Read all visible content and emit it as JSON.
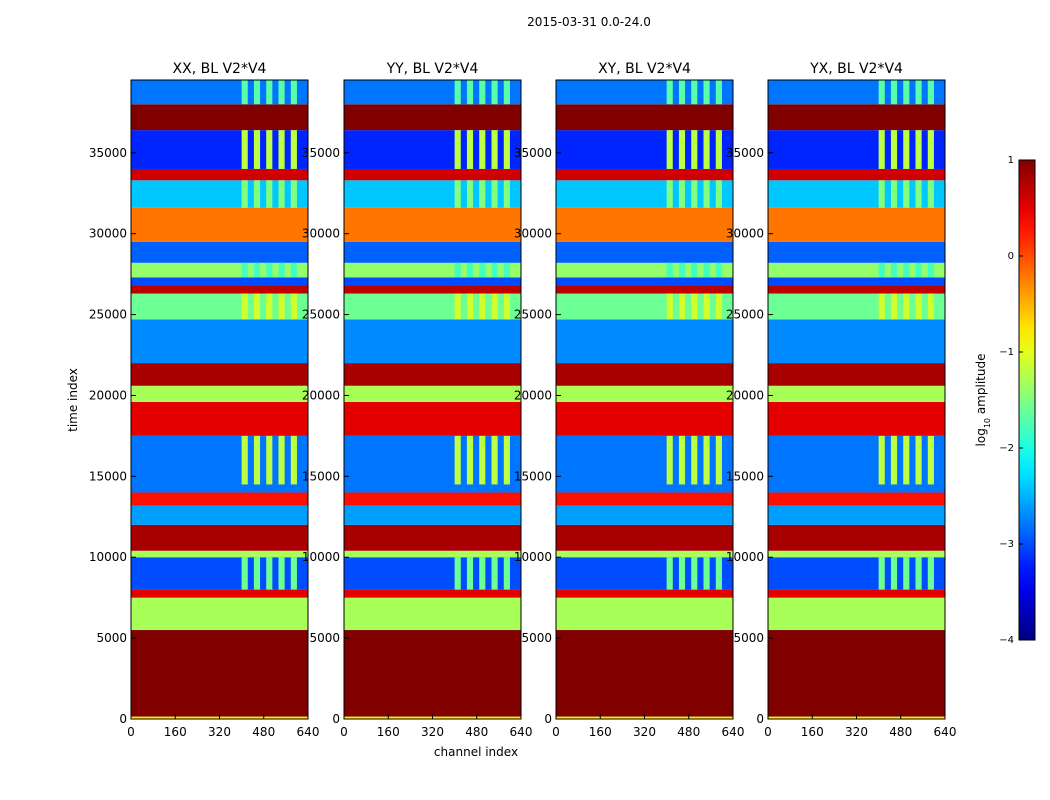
{
  "chart_data": {
    "type": "heatmap",
    "title": "2015-03-31 0.0-24.0",
    "xlabel": "channel index",
    "ylabel": "time index",
    "xlim": [
      0,
      640
    ],
    "ylim": [
      0,
      39500
    ],
    "xticks": [
      0,
      160,
      320,
      480,
      640
    ],
    "yticks": [
      0,
      5000,
      10000,
      15000,
      20000,
      25000,
      30000,
      35000
    ],
    "colorbar": {
      "label_main": "log",
      "label_sub": "10",
      "label_tail": " amplitude",
      "range": [
        -4,
        1
      ],
      "ticks": [
        1,
        0,
        -1,
        -2,
        -3,
        -4
      ],
      "tick_labels": [
        "1",
        "0",
        "−1",
        "−2",
        "−3",
        "−4"
      ],
      "colormap": "jet"
    },
    "panels": [
      {
        "title": "XX, BL V2*V4",
        "key": "xx"
      },
      {
        "title": "YY, BL V2*V4",
        "key": "yy"
      },
      {
        "title": "XY, BL V2*V4",
        "key": "xy"
      },
      {
        "title": "YX, BL V2*V4",
        "key": "yx"
      }
    ],
    "time_bands": [
      {
        "t0": 0,
        "t1": 150,
        "v": -0.8
      },
      {
        "t0": 150,
        "t1": 5500,
        "v": 1.0
      },
      {
        "t0": 5500,
        "t1": 7500,
        "v": -1.3
      },
      {
        "t0": 7500,
        "t1": 8000,
        "v": 0.5
      },
      {
        "t0": 8000,
        "t1": 10000,
        "v": -3.0
      },
      {
        "t0": 10000,
        "t1": 10400,
        "v": -1.3
      },
      {
        "t0": 10400,
        "t1": 12000,
        "v": 0.8
      },
      {
        "t0": 12000,
        "t1": 13200,
        "v": -2.6
      },
      {
        "t0": 13200,
        "t1": 14000,
        "v": 0.3
      },
      {
        "t0": 14000,
        "t1": 17500,
        "v": -2.8
      },
      {
        "t0": 17500,
        "t1": 19600,
        "v": 0.5
      },
      {
        "t0": 19600,
        "t1": 20600,
        "v": -1.3
      },
      {
        "t0": 20600,
        "t1": 22000,
        "v": 0.8
      },
      {
        "t0": 22000,
        "t1": 24700,
        "v": -2.7
      },
      {
        "t0": 24700,
        "t1": 26300,
        "v": -1.6
      },
      {
        "t0": 26300,
        "t1": 26800,
        "v": 0.7
      },
      {
        "t0": 26800,
        "t1": 27300,
        "v": -3.0
      },
      {
        "t0": 27300,
        "t1": 28200,
        "v": -1.4
      },
      {
        "t0": 28200,
        "t1": 29500,
        "v": -2.9
      },
      {
        "t0": 29500,
        "t1": 31600,
        "v": -0.2
      },
      {
        "t0": 31600,
        "t1": 33300,
        "v": -2.4
      },
      {
        "t0": 33300,
        "t1": 34000,
        "v": 0.6
      },
      {
        "t0": 34000,
        "t1": 36400,
        "v": -3.2
      },
      {
        "t0": 36400,
        "t1": 38000,
        "v": 1.0
      },
      {
        "t0": 38000,
        "t1": 39500,
        "v": -2.8
      }
    ],
    "rfi_blocks": [
      {
        "t0": 8000,
        "t1": 10000,
        "c0": 400,
        "c1": 600,
        "v": -1.6
      },
      {
        "t0": 14500,
        "t1": 17500,
        "c0": 400,
        "c1": 600,
        "v": -1.2
      },
      {
        "t0": 24700,
        "t1": 26300,
        "c0": 400,
        "c1": 600,
        "v": -1.1
      },
      {
        "t0": 27300,
        "t1": 28200,
        "c0": 400,
        "c1": 600,
        "v": -1.8
      },
      {
        "t0": 31600,
        "t1": 33300,
        "c0": 400,
        "c1": 600,
        "v": -1.5
      },
      {
        "t0": 34000,
        "t1": 36400,
        "c0": 400,
        "c1": 600,
        "v": -1.2
      },
      {
        "t0": 38000,
        "t1": 39500,
        "c0": 400,
        "c1": 600,
        "v": -1.7
      }
    ]
  }
}
